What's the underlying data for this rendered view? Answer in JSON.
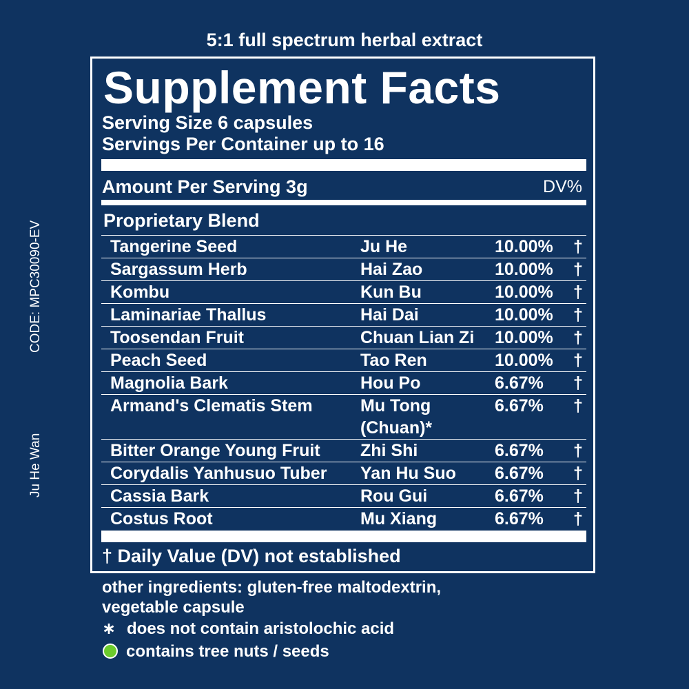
{
  "tagline": "5:1 full spectrum herbal extract",
  "side": {
    "code": "CODE: MPC30090-EV",
    "product_name": "Ju He Wan"
  },
  "panel": {
    "title": "Supplement Facts",
    "serving_size": "Serving Size 6 capsules",
    "servings_per_container": "Servings Per Container up to 16",
    "amount_per_serving": "Amount Per Serving 3g",
    "dv_header": "DV%",
    "blend_title": "Proprietary Blend",
    "ingredients": [
      {
        "name": "Tangerine Seed",
        "pinyin": "Ju He",
        "pinyin2": "",
        "percent": "10.00%",
        "mark": "†"
      },
      {
        "name": "Sargassum Herb",
        "pinyin": "Hai Zao",
        "pinyin2": "",
        "percent": "10.00%",
        "mark": "†"
      },
      {
        "name": "Kombu",
        "pinyin": "Kun Bu",
        "pinyin2": "",
        "percent": "10.00%",
        "mark": "†"
      },
      {
        "name": "Laminariae Thallus",
        "pinyin": "Hai Dai",
        "pinyin2": "",
        "percent": "10.00%",
        "mark": "†"
      },
      {
        "name": "Toosendan Fruit",
        "pinyin": "Chuan Lian Zi",
        "pinyin2": "",
        "percent": "10.00%",
        "mark": "†"
      },
      {
        "name": "Peach Seed",
        "pinyin": "Tao Ren",
        "pinyin2": "",
        "percent": "10.00%",
        "mark": "†"
      },
      {
        "name": "Magnolia Bark",
        "pinyin": "Hou Po",
        "pinyin2": "",
        "percent": "6.67%",
        "mark": "†"
      },
      {
        "name": "Armand's Clematis Stem",
        "pinyin": "Mu Tong",
        "pinyin2": "(Chuan)*",
        "percent": "6.67%",
        "mark": "†"
      },
      {
        "name": "Bitter Orange Young Fruit",
        "pinyin": "Zhi Shi",
        "pinyin2": "",
        "percent": "6.67%",
        "mark": "†"
      },
      {
        "name": "Corydalis Yanhusuo Tuber",
        "pinyin": "Yan Hu Suo",
        "pinyin2": "",
        "percent": "6.67%",
        "mark": "†"
      },
      {
        "name": "Cassia Bark",
        "pinyin": "Rou Gui",
        "pinyin2": "",
        "percent": "6.67%",
        "mark": "†"
      },
      {
        "name": "Costus Root",
        "pinyin": "Mu Xiang",
        "pinyin2": "",
        "percent": "6.67%",
        "mark": "†"
      }
    ],
    "footnote": "† Daily Value (DV) not established"
  },
  "other_ingredients_line1": "other ingredients: gluten-free maltodextrin,",
  "other_ingredients_line2": "vegetable capsule",
  "legend": {
    "asterisk_symbol": "∗",
    "asterisk_text": "does not contain aristolochic acid",
    "dot_text": "contains tree nuts / seeds",
    "dot_color": "#6ccb2c"
  },
  "colors": {
    "background": "#0f3360",
    "text": "#ffffff"
  }
}
